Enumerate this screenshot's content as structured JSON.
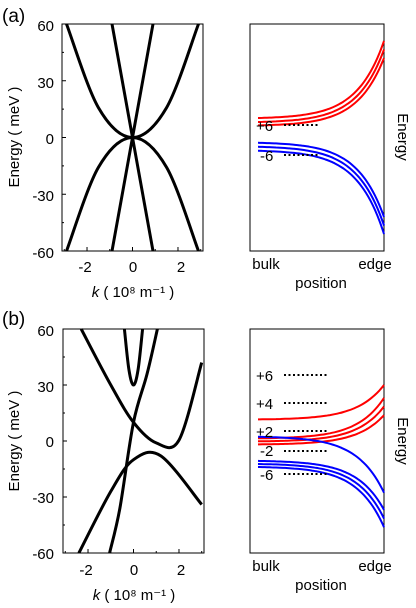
{
  "panel_a": {
    "tag": "(a)",
    "left": {
      "ylabel": "Energy ( meV )",
      "xlabel_k": "k",
      "xlabel_rest": " ( 10⁸ m⁻¹ )",
      "yticks": [
        "60",
        "30",
        "0",
        "-30",
        "-60"
      ],
      "xticks": [
        "-2",
        "0",
        "2"
      ]
    },
    "right": {
      "ylabel": "Energy",
      "xlabel": "position",
      "x_left": "bulk",
      "x_right": "edge",
      "levels": [
        "+6",
        "-6"
      ]
    }
  },
  "panel_b": {
    "tag": "(b)",
    "left": {
      "ylabel": "Energy ( meV )",
      "xlabel_k": "k",
      "xlabel_rest": " ( 10⁸ m⁻¹ )",
      "yticks": [
        "60",
        "30",
        "0",
        "-30",
        "-60"
      ],
      "xticks": [
        "-2",
        "0",
        "2"
      ]
    },
    "right": {
      "ylabel": "Energy",
      "xlabel": "position",
      "x_left": "bulk",
      "x_right": "edge",
      "levels": [
        "+6",
        "+4",
        "+2",
        "-2",
        "-6"
      ]
    }
  },
  "chart_data": [
    {
      "type": "line",
      "panel": "(a) dispersion",
      "xlabel": "k ( 10⁸ m⁻¹ )",
      "ylabel": "Energy ( meV )",
      "xlim": [
        -3.1,
        3.1
      ],
      "ylim": [
        -60,
        60
      ],
      "xticks": [
        -2,
        0,
        2
      ],
      "yticks": [
        -60,
        -30,
        0,
        30,
        60
      ],
      "color": "#000000",
      "series": [
        {
          "x": [
            -2.9,
            -1.5,
            0,
            1.5,
            2.9
          ],
          "y": [
            60,
            15.8,
            0,
            15.8,
            60
          ]
        },
        {
          "x": [
            -2.9,
            -1.5,
            0,
            1.5,
            2.9
          ],
          "y": [
            -60,
            -15.8,
            0,
            -15.8,
            -60
          ]
        },
        {
          "x": [
            -0.9,
            0,
            0.9
          ],
          "y": [
            -60,
            0,
            60
          ]
        },
        {
          "x": [
            -0.9,
            0,
            0.9
          ],
          "y": [
            60,
            0,
            -60
          ]
        }
      ]
    },
    {
      "type": "line",
      "panel": "(a) edge states",
      "xlabel": "position",
      "ylabel": "Energy",
      "categories": [
        "bulk",
        "edge"
      ],
      "levels": [
        6,
        -6
      ],
      "series": [
        {
          "group": "upper",
          "color": "#ff0000",
          "bulk": [
            6.8,
            5.4,
            4.2
          ],
          "edge": [
            34,
            31,
            28
          ]
        },
        {
          "group": "lower",
          "color": "#0000ff",
          "bulk": [
            -1.8,
            -3.2,
            -4.6
          ],
          "edge": [
            -28,
            -31,
            -34
          ]
        }
      ]
    },
    {
      "type": "line",
      "panel": "(b) dispersion",
      "xlabel": "k ( 10⁸ m⁻¹ )",
      "ylabel": "Energy ( meV )",
      "xlim": [
        -3.1,
        3.1
      ],
      "ylim": [
        -60,
        60
      ],
      "xticks": [
        -2,
        0,
        2
      ],
      "yticks": [
        -60,
        -30,
        0,
        30,
        60
      ],
      "color": "#000000",
      "series": [
        {
          "x": [
            -0.4,
            -0.2,
            0,
            0.2,
            0.4
          ],
          "y": [
            60,
            38,
            30,
            38,
            60
          ]
        },
        {
          "x": [
            -2.3,
            -1.0,
            0,
            1.0,
            2.0,
            3.0
          ],
          "y": [
            60,
            30,
            10,
            -1,
            0.5,
            42
          ]
        },
        {
          "x": [
            -2.4,
            -1.0,
            0,
            1.2,
            3.0
          ],
          "y": [
            -60,
            -27,
            -10,
            -8,
            -34
          ]
        },
        {
          "x": [
            -1.05,
            -0.6,
            0,
            0.6,
            1.05
          ],
          "y": [
            -60,
            -36,
            10,
            36,
            60
          ]
        }
      ]
    },
    {
      "type": "line",
      "panel": "(b) edge states",
      "xlabel": "position",
      "ylabel": "Energy",
      "categories": [
        "bulk",
        "edge"
      ],
      "levels": [
        6,
        4,
        2,
        -2,
        -6
      ],
      "series": [
        {
          "group": "+6",
          "color": "#ff0000",
          "bulk": [
            6
          ],
          "edge": [
            14
          ]
        },
        {
          "group": "+2",
          "color": "#ff0000",
          "bulk": [
            1.6,
            0.9,
            0.2
          ],
          "edge": [
            11,
            9,
            7
          ]
        },
        {
          "group": "-2",
          "color": "#0000ff",
          "bulk": [
            2
          ],
          "edge": [
            -11
          ]
        },
        {
          "group": "-6",
          "color": "#0000ff",
          "bulk": [
            -3.6,
            -4.3,
            -5.0
          ],
          "edge": [
            -15,
            -17,
            -19
          ]
        }
      ]
    }
  ]
}
